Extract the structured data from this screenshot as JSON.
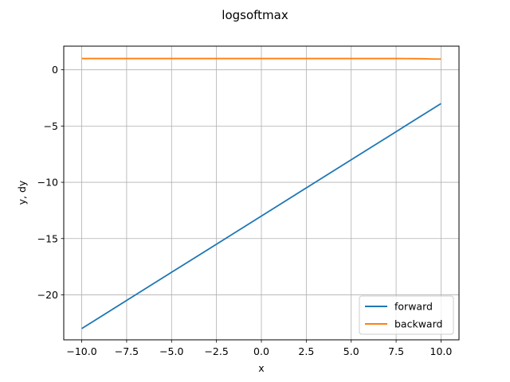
{
  "chart_data": {
    "type": "line",
    "title": "logsoftmax",
    "xlabel": "x",
    "ylabel": "y, dy",
    "xlim": [
      -11.0,
      11.0
    ],
    "ylim": [
      -24.0,
      2.1
    ],
    "xticks": [
      -10.0,
      -7.5,
      -5.0,
      -2.5,
      0.0,
      2.5,
      5.0,
      7.5,
      10.0
    ],
    "xtick_labels": [
      "−10.0",
      "−7.5",
      "−5.0",
      "−2.5",
      "0.0",
      "2.5",
      "5.0",
      "7.5",
      "10.0"
    ],
    "yticks": [
      0,
      -5,
      -10,
      -15,
      -20
    ],
    "ytick_labels": [
      "0",
      "−5",
      "−10",
      "−15",
      "−20"
    ],
    "grid": true,
    "legend_position": "lower-right",
    "series": [
      {
        "name": "forward",
        "color": "#1f77b4",
        "x": [
          -10,
          -7.5,
          -5,
          -2.5,
          0,
          2.5,
          5,
          7.5,
          10
        ],
        "y": [
          -23.0,
          -20.5,
          -18.0,
          -15.5,
          -13.0,
          -10.5,
          -8.0,
          -5.5,
          -3.0
        ]
      },
      {
        "name": "backward",
        "color": "#ff7f0e",
        "x": [
          -10,
          -7.5,
          -5,
          -2.5,
          0,
          2.5,
          5,
          7.5,
          8.5,
          9,
          9.5,
          10
        ],
        "y": [
          1.0,
          1.0,
          1.0,
          1.0,
          1.0,
          1.0,
          1.0,
          1.0,
          0.99,
          0.98,
          0.96,
          0.95
        ]
      }
    ]
  }
}
